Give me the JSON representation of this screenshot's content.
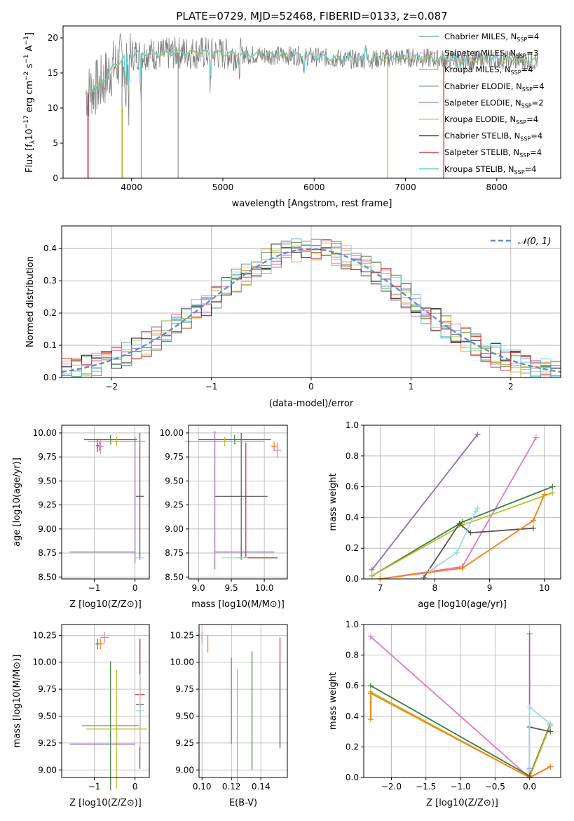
{
  "chart_data": [
    {
      "type": "line",
      "title": "PLATE=0729, MJD=52468, FIBERID=0133, z=0.087",
      "xlabel": "wavelength [Angstrom, rest frame]",
      "ylabel": "Flux [f_λ 10^-17 erg cm^-2 s^-1 A^-1]",
      "xlim": [
        3250,
        8700
      ],
      "ylim": [
        0,
        21.7
      ],
      "xticks": [
        "4000",
        "5000",
        "6000",
        "7000",
        "8000"
      ],
      "yticks": [
        "0",
        "5",
        "10",
        "15",
        "20"
      ],
      "legend_position": "top-right",
      "series": [
        {
          "name": "Chabrier MILES, N_SSP=4",
          "color": "#2e8b57"
        },
        {
          "name": "Salpeter MILES, N_SSP=3",
          "color": "#e377c2"
        },
        {
          "name": "Kroupa MILES, N_SSP=4",
          "color": "#ff7f0e"
        },
        {
          "name": "Chabrier ELODIE, N_SSP=4",
          "color": "#3a7d44"
        },
        {
          "name": "Salpeter ELODIE, N_SSP=2",
          "color": "#9467bd"
        },
        {
          "name": "Kroupa ELODIE, N_SSP=4",
          "color": "#bcbd22"
        },
        {
          "name": "Chabrier STELIB, N_SSP=4",
          "color": "#000000"
        },
        {
          "name": "Salpeter STELIB, N_SSP=4",
          "color": "#d62728"
        },
        {
          "name": "Kroupa STELIB, N_SSP=4",
          "color": "#17becf"
        }
      ],
      "data_series": {
        "name": "data",
        "color": "#808080"
      },
      "model_color": "#5fd3d8",
      "profile_x": [
        3500,
        3550,
        3600,
        3650,
        3700,
        3750,
        3800,
        3850,
        3900,
        3950,
        4000,
        4100,
        4200,
        4300,
        4400,
        4500,
        4700,
        4900,
        5100,
        5300,
        5500,
        5700,
        5900,
        6100,
        6300,
        6500,
        6700,
        6900,
        7100,
        7300,
        7500,
        7700,
        7900,
        8100,
        8300
      ],
      "profile_y": [
        12.0,
        12.6,
        12.8,
        13.2,
        14.0,
        15.0,
        15.8,
        16.4,
        17.0,
        17.4,
        17.6,
        17.8,
        17.8,
        17.6,
        17.7,
        17.9,
        17.9,
        17.8,
        17.7,
        17.6,
        17.5,
        17.5,
        17.4,
        17.2,
        17.0,
        16.9,
        17.0,
        17.2,
        17.2,
        17.0,
        17.0,
        16.8,
        16.9,
        16.9,
        16.7
      ]
    },
    {
      "type": "step",
      "xlabel": "(data-model)/error",
      "ylabel": "Normed distribution",
      "xlim": [
        -2.5,
        2.5
      ],
      "ylim": [
        0,
        0.47
      ],
      "xticks": [
        "−2",
        "−1",
        "0",
        "1",
        "2"
      ],
      "yticks": [
        "0.0",
        "0.1",
        "0.2",
        "0.3",
        "0.4"
      ],
      "legend": [
        "𝒩(0, 1)"
      ],
      "legend_position": "top-right",
      "bin_width": 0.1
    },
    {
      "type": "errorbar",
      "xlabel": "Z [log10(Z/Z⊙)]",
      "ylabel": "age  [log10(age/yr)]",
      "xlim": [
        -1.8,
        0.35
      ],
      "ylim": [
        8.48,
        10.08
      ],
      "xticks": [
        "−1",
        "0"
      ],
      "yticks": [
        "8.50",
        "8.75",
        "9.00",
        "9.25",
        "9.50",
        "9.75",
        "10.00"
      ],
      "points": [
        {
          "x": -0.88,
          "xerr": 0.05,
          "y": 9.86,
          "yerr": 0.05,
          "color": "#ff7f0e"
        },
        {
          "x": -0.85,
          "xerr": 0.08,
          "y": 9.86,
          "yerr": 0.08,
          "color": "#e377c2"
        },
        {
          "x": -0.92,
          "xerr": 0.04,
          "y": 9.87,
          "yerr": 0.07,
          "color": "#1f77b4"
        },
        {
          "x": 0.12,
          "xerr": 0.1,
          "y": 9.34,
          "yerr": 0.66,
          "color": "#555555"
        },
        {
          "x": -0.6,
          "xerr": 0.65,
          "y": 9.93,
          "yerr": 0.05,
          "color": "#3a7d44"
        },
        {
          "x": -0.45,
          "xerr": 0.7,
          "y": 9.91,
          "yerr": 0.05,
          "color": "#bcbd22"
        },
        {
          "x": 0.0,
          "xerr": 0.0,
          "y": 9.3,
          "yerr": 0.66,
          "color": "#9467bd"
        },
        {
          "x": -0.8,
          "xerr": 0.8,
          "y": 8.76,
          "yerr": 0.0,
          "color": "#9467bd"
        },
        {
          "x": 0.12,
          "xerr": 0.1,
          "y": 8.7,
          "yerr": 0.0,
          "color": "#9fd8e8"
        }
      ]
    },
    {
      "type": "errorbar",
      "xlabel": "mass [log10(M/M⊙)]",
      "xlim": [
        8.85,
        10.35
      ],
      "ylim": [
        8.48,
        10.08
      ],
      "xticks": [
        "9.0",
        "9.5",
        "10.0"
      ],
      "yticks": [
        "8.50",
        "8.75",
        "9.00",
        "9.25",
        "9.50",
        "9.75",
        "10.00"
      ],
      "points": [
        {
          "x": 10.15,
          "xerr": 0.05,
          "y": 9.86,
          "yerr": 0.05,
          "color": "#ff7f0e"
        },
        {
          "x": 10.2,
          "xerr": 0.06,
          "y": 9.82,
          "yerr": 0.08,
          "color": "#e377c2"
        },
        {
          "x": 9.65,
          "xerr": 0.4,
          "y": 9.34,
          "yerr": 0.66,
          "color": "#555555"
        },
        {
          "x": 9.55,
          "xerr": 0.55,
          "y": 9.93,
          "yerr": 0.05,
          "color": "#3a7d44"
        },
        {
          "x": 9.4,
          "xerr": 0.6,
          "y": 9.91,
          "yerr": 0.05,
          "color": "#bcbd22"
        },
        {
          "x": 9.25,
          "xerr": 0.0,
          "y": 9.3,
          "yerr": 0.72,
          "color": "#9467bd"
        },
        {
          "x": 9.7,
          "xerr": 0.45,
          "y": 8.76,
          "yerr": 0.0,
          "color": "#9467bd"
        },
        {
          "x": 9.9,
          "xerr": 0.3,
          "y": 8.7,
          "yerr": 0.0,
          "color": "#d62728"
        },
        {
          "x": 9.72,
          "xerr": 0.0,
          "y": 9.3,
          "yerr": 0.6,
          "color": "#d62728"
        },
        {
          "x": 9.55,
          "xerr": 0.2,
          "y": 8.7,
          "yerr": 0.0,
          "color": "#9fd8e8"
        }
      ]
    },
    {
      "type": "line",
      "xlabel": "age  [log10(age/yr)]",
      "ylabel": "mass weight",
      "xlim": [
        6.7,
        10.3
      ],
      "ylim": [
        0.0,
        1.0
      ],
      "xticks": [
        "7",
        "8",
        "9",
        "10"
      ],
      "yticks": [
        "0.0",
        "0.2",
        "0.4",
        "0.6",
        "0.8",
        "1.0"
      ],
      "series": [
        {
          "color": "#9467bd",
          "x": [
            6.85,
            8.78
          ],
          "y": [
            0.06,
            0.94
          ]
        },
        {
          "color": "#e377c2",
          "x": [
            7.0,
            8.5,
            9.85
          ],
          "y": [
            0.0,
            0.08,
            0.92
          ]
        },
        {
          "color": "#3a7d44",
          "x": [
            6.85,
            8.5,
            10.15
          ],
          "y": [
            0.02,
            0.37,
            0.6
          ]
        },
        {
          "color": "#bcbd22",
          "x": [
            6.85,
            8.5,
            10.15
          ],
          "y": [
            0.02,
            0.35,
            0.56
          ]
        },
        {
          "color": "#555555",
          "x": [
            7.8,
            8.45,
            8.65,
            9.8
          ],
          "y": [
            0.01,
            0.36,
            0.3,
            0.33
          ]
        },
        {
          "color": "#ff7f0e",
          "x": [
            7.0,
            8.5,
            9.8,
            10.0
          ],
          "y": [
            0.0,
            0.07,
            0.38,
            0.55
          ]
        },
        {
          "color": "#9fd8e8",
          "x": [
            7.9,
            8.4,
            8.75,
            8.78
          ],
          "y": [
            0.05,
            0.17,
            0.44,
            0.46
          ]
        }
      ]
    },
    {
      "type": "errorbar",
      "xlabel": "Z [log10(Z/Z⊙)]",
      "ylabel": "mass [log10(M/M⊙)]",
      "xlim": [
        -1.8,
        0.35
      ],
      "ylim": [
        8.93,
        10.35
      ],
      "xticks": [
        "−1",
        "0"
      ],
      "yticks": [
        "9.00",
        "9.25",
        "9.50",
        "9.75",
        "10.00",
        "10.25"
      ],
      "points": [
        {
          "x": -0.75,
          "xerr": 0.1,
          "y": 10.23,
          "yerr": 0.05,
          "color": "#e377c2"
        },
        {
          "x": -0.85,
          "xerr": 0.1,
          "y": 10.17,
          "yerr": 0.05,
          "color": "#ff7f0e"
        },
        {
          "x": -0.92,
          "xerr": 0.05,
          "y": 10.17,
          "yerr": 0.05,
          "color": "#1f77b4"
        },
        {
          "x": 0.12,
          "xerr": 0.1,
          "y": 9.61,
          "yerr": 0.6,
          "color": "#555555"
        },
        {
          "x": 0.12,
          "xerr": 0.12,
          "y": 9.7,
          "yerr": 0.52,
          "color": "#d62728"
        },
        {
          "x": 0.12,
          "xerr": 0.1,
          "y": 9.55,
          "yerr": 0.34,
          "color": "#9fd8e8"
        },
        {
          "x": -0.6,
          "xerr": 0.7,
          "y": 9.41,
          "yerr": 0.6,
          "color": "#3a7d44"
        },
        {
          "x": -0.45,
          "xerr": 0.75,
          "y": 9.38,
          "yerr": 0.55,
          "color": "#bcbd22"
        },
        {
          "x": -0.8,
          "xerr": 0.8,
          "y": 9.24,
          "yerr": 0.0,
          "color": "#9467bd"
        }
      ]
    },
    {
      "type": "errorbar",
      "xlabel": "E(B-V)",
      "xlim": [
        0.098,
        0.158
      ],
      "ylim": [
        8.93,
        10.35
      ],
      "xticks": [
        "0.10",
        "0.12",
        "0.14"
      ],
      "yticks": [
        "9.00",
        "9.25",
        "9.50",
        "9.75",
        "10.00",
        "10.25"
      ],
      "points": [
        {
          "x": 0.1,
          "xerr": 0.0,
          "y": 10.23,
          "yerr": 0.05,
          "color": "#e377c2"
        },
        {
          "x": 0.104,
          "xerr": 0.0,
          "y": 10.17,
          "yerr": 0.08,
          "color": "#ff7f0e"
        },
        {
          "x": 0.12,
          "xerr": 0.0,
          "y": 9.64,
          "yerr": 0.4,
          "color": "#9467bd"
        },
        {
          "x": 0.124,
          "xerr": 0.0,
          "y": 9.38,
          "yerr": 0.55,
          "color": "#bcbd22"
        },
        {
          "x": 0.134,
          "xerr": 0.0,
          "y": 9.55,
          "yerr": 0.55,
          "color": "#3a7d44"
        },
        {
          "x": 0.153,
          "xerr": 0.0,
          "y": 9.73,
          "yerr": 0.5,
          "color": "#d62728"
        },
        {
          "x": 0.153,
          "xerr": 0.0,
          "y": 9.6,
          "yerr": 0.4,
          "color": "#555555"
        }
      ]
    },
    {
      "type": "line",
      "xlabel": "Z [log10(Z/Z⊙)]",
      "ylabel": "mass weight",
      "xlim": [
        -2.4,
        0.45
      ],
      "ylim": [
        0.0,
        1.0
      ],
      "xticks": [
        "−2.0",
        "−1.5",
        "−1.0",
        "−0.5",
        "0.0"
      ],
      "yticks": [
        "0.0",
        "0.2",
        "0.4",
        "0.6",
        "0.8",
        "1.0"
      ],
      "series": [
        {
          "color": "#e377c2",
          "x": [
            -2.3,
            0.0,
            0.3
          ],
          "y": [
            0.92,
            0.0,
            0.07
          ]
        },
        {
          "color": "#3a7d44",
          "x": [
            -2.3,
            0.0,
            0.3
          ],
          "y": [
            0.6,
            0.01,
            0.35
          ]
        },
        {
          "color": "#bcbd22",
          "x": [
            -2.3,
            0.0,
            0.3
          ],
          "y": [
            0.56,
            0.0,
            0.34
          ]
        },
        {
          "color": "#ff7f0e",
          "x": [
            -2.3,
            -2.3,
            0.0,
            0.3
          ],
          "y": [
            0.38,
            0.55,
            0.0,
            0.07
          ]
        },
        {
          "color": "#9467bd",
          "x": [
            0.0,
            0.0
          ],
          "y": [
            0.94,
            0.06
          ]
        },
        {
          "color": "#555555",
          "x": [
            0.0,
            0.0,
            0.3
          ],
          "y": [
            0.0,
            0.33,
            0.3
          ]
        },
        {
          "color": "#9fd8e8",
          "x": [
            0.0,
            0.0,
            0.3
          ],
          "y": [
            0.05,
            0.46,
            0.35
          ]
        }
      ]
    }
  ]
}
